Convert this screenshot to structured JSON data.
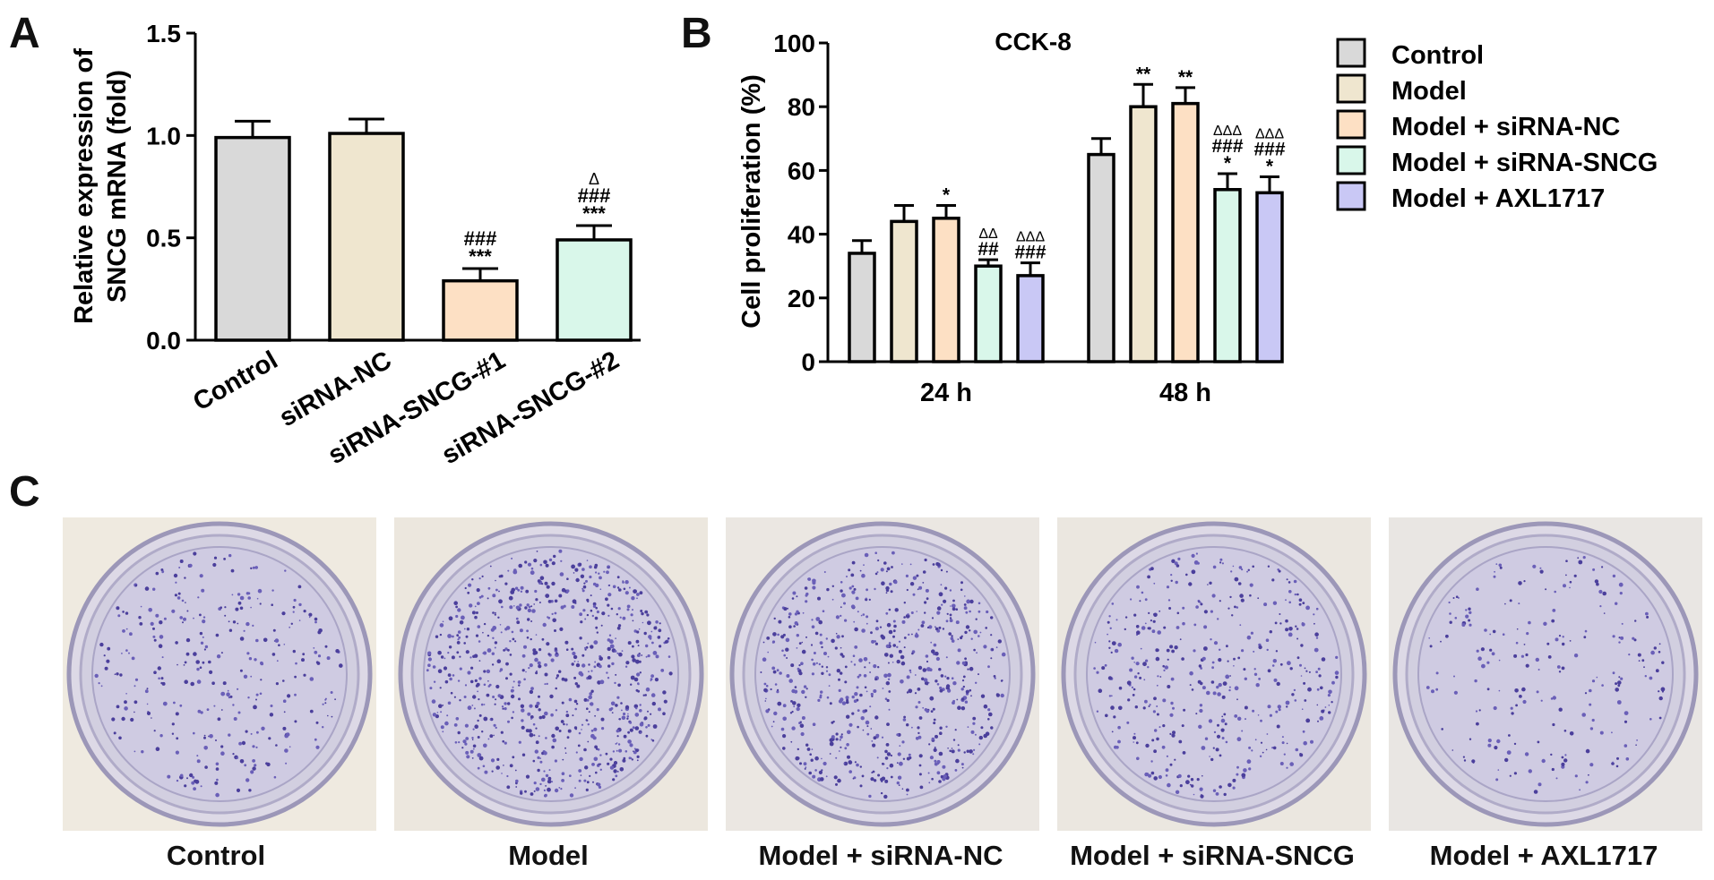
{
  "panels": {
    "a": "A",
    "b": "B",
    "c": "C"
  },
  "chart_data": [
    {
      "type": "bar",
      "panel": "A",
      "title": "",
      "ylabel_line1": "Relative expression of",
      "ylabel_line2": "SNCG mRNA (fold)",
      "ylim": [
        0,
        1.5
      ],
      "yticks": [
        "0.0",
        "0.5",
        "1.0",
        "1.5"
      ],
      "categories": [
        "Control",
        "siRNA-NC",
        "siRNA-SNCG-#1",
        "siRNA-SNCG-#2"
      ],
      "values": [
        0.99,
        1.01,
        0.29,
        0.49
      ],
      "errors": [
        0.08,
        0.07,
        0.06,
        0.07
      ],
      "colors": [
        "#d9d9d9",
        "#efe6cf",
        "#fde0c4",
        "#d9f7ea"
      ],
      "annotations": [
        [],
        [],
        [
          "###",
          "***"
        ],
        [
          "Δ",
          "###",
          "***"
        ]
      ]
    },
    {
      "type": "bar",
      "panel": "B",
      "title": "CCK-8",
      "ylabel": "Cell proliferation (%)",
      "ylim": [
        0,
        100
      ],
      "yticks": [
        "0",
        "20",
        "40",
        "60",
        "80",
        "100"
      ],
      "categories": [
        "24 h",
        "48 h"
      ],
      "series": [
        {
          "name": "Control",
          "color": "#d9d9d9",
          "values": [
            34,
            65
          ],
          "errors": [
            4,
            5
          ],
          "annotations": [
            [],
            []
          ]
        },
        {
          "name": "Model",
          "color": "#efe6cf",
          "values": [
            44,
            80
          ],
          "errors": [
            5,
            7
          ],
          "annotations": [
            [],
            [
              "**"
            ]
          ]
        },
        {
          "name": "Model + siRNA-NC",
          "color": "#fde0c4",
          "values": [
            45,
            81
          ],
          "errors": [
            4,
            5
          ],
          "annotations": [
            [
              "*"
            ],
            [
              "**"
            ]
          ]
        },
        {
          "name": "Model + siRNA-SNCG",
          "color": "#d9f7ea",
          "values": [
            30,
            54
          ],
          "errors": [
            2,
            5
          ],
          "annotations": [
            [
              "ΔΔ",
              "##"
            ],
            [
              "ΔΔΔ",
              "###",
              "*"
            ]
          ]
        },
        {
          "name": "Model + AXL1717",
          "color": "#c9c8f5",
          "values": [
            27,
            53
          ],
          "errors": [
            4,
            5
          ],
          "annotations": [
            [
              "ΔΔΔ",
              "###"
            ],
            [
              "ΔΔΔ",
              "###",
              "*"
            ]
          ]
        }
      ]
    }
  ],
  "dishes": [
    {
      "label": "Control",
      "density": 0.35,
      "bg": "#efeae0"
    },
    {
      "label": "Model",
      "density": 1.0,
      "bg": "#ece7de"
    },
    {
      "label": "Model + siRNA-NC",
      "density": 0.85,
      "bg": "#ebe7e2"
    },
    {
      "label": "Model + siRNA-SNCG",
      "density": 0.5,
      "bg": "#ebe7e0"
    },
    {
      "label": "Model + AXL1717",
      "density": 0.2,
      "bg": "#e9e6e3"
    }
  ]
}
